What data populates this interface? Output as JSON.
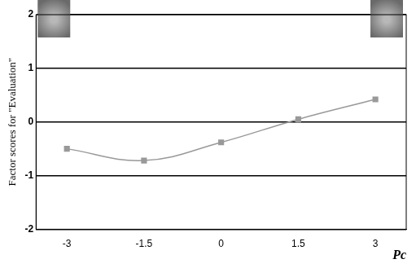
{
  "chart_data": {
    "type": "line",
    "x_label": "Pc",
    "y_label": "Factor scores for \"Evaluation\"",
    "x": [
      -3,
      -1.5,
      0,
      1.5,
      3
    ],
    "values": [
      -0.5,
      -0.72,
      -0.38,
      0.05,
      0.42
    ],
    "color": "#999999",
    "marker": "square",
    "line_style": "smooth",
    "xlim": [
      -3.6,
      3.6
    ],
    "xticks": [
      -3,
      -1.5,
      0,
      1.5,
      3
    ],
    "ylim": [
      -2,
      2
    ],
    "yticks": [
      -2,
      -1,
      0,
      1,
      2
    ],
    "grid": true
  }
}
